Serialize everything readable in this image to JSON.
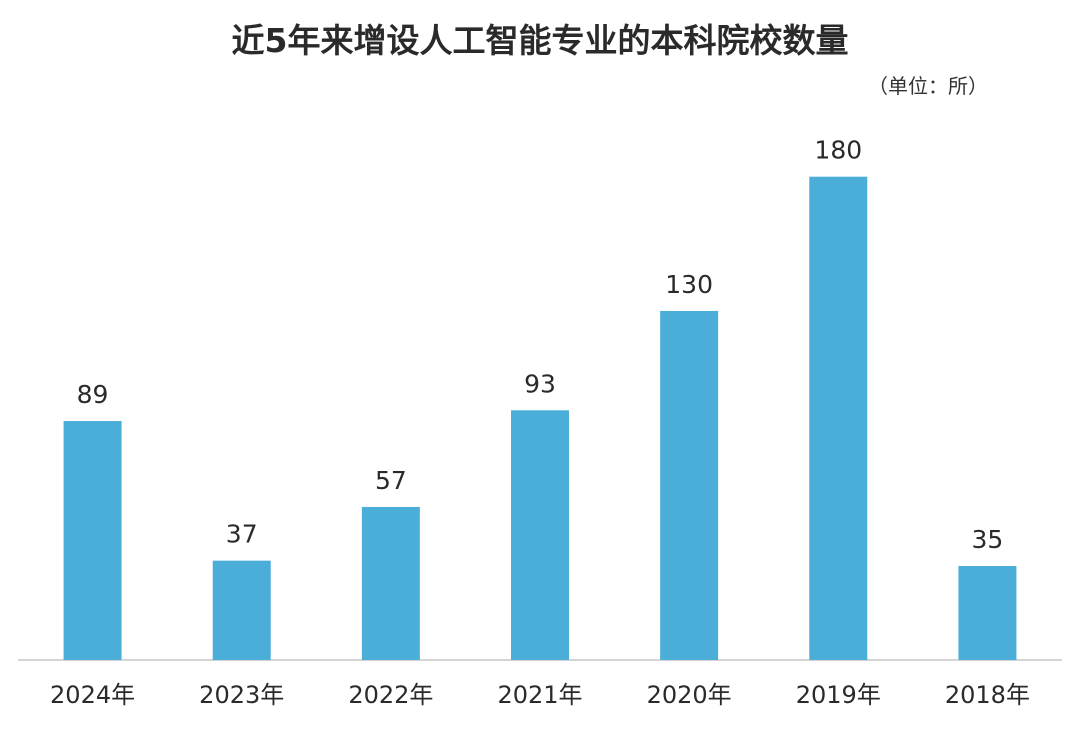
{
  "colors": {
    "bar": "#4aaed9",
    "baseline": "#d4d4d4",
    "text": "#2a2a2a"
  },
  "chart_data": {
    "type": "bar",
    "title": "近5年来增设人工智能专业的本科院校数量",
    "unit": "（单位：所）",
    "categories": [
      "2024年",
      "2023年",
      "2022年",
      "2021年",
      "2020年",
      "2019年",
      "2018年"
    ],
    "values": [
      89,
      37,
      57,
      93,
      130,
      180,
      35
    ],
    "ylim": [
      0,
      200
    ],
    "grid": false,
    "legend": "none",
    "data_labels": true
  }
}
